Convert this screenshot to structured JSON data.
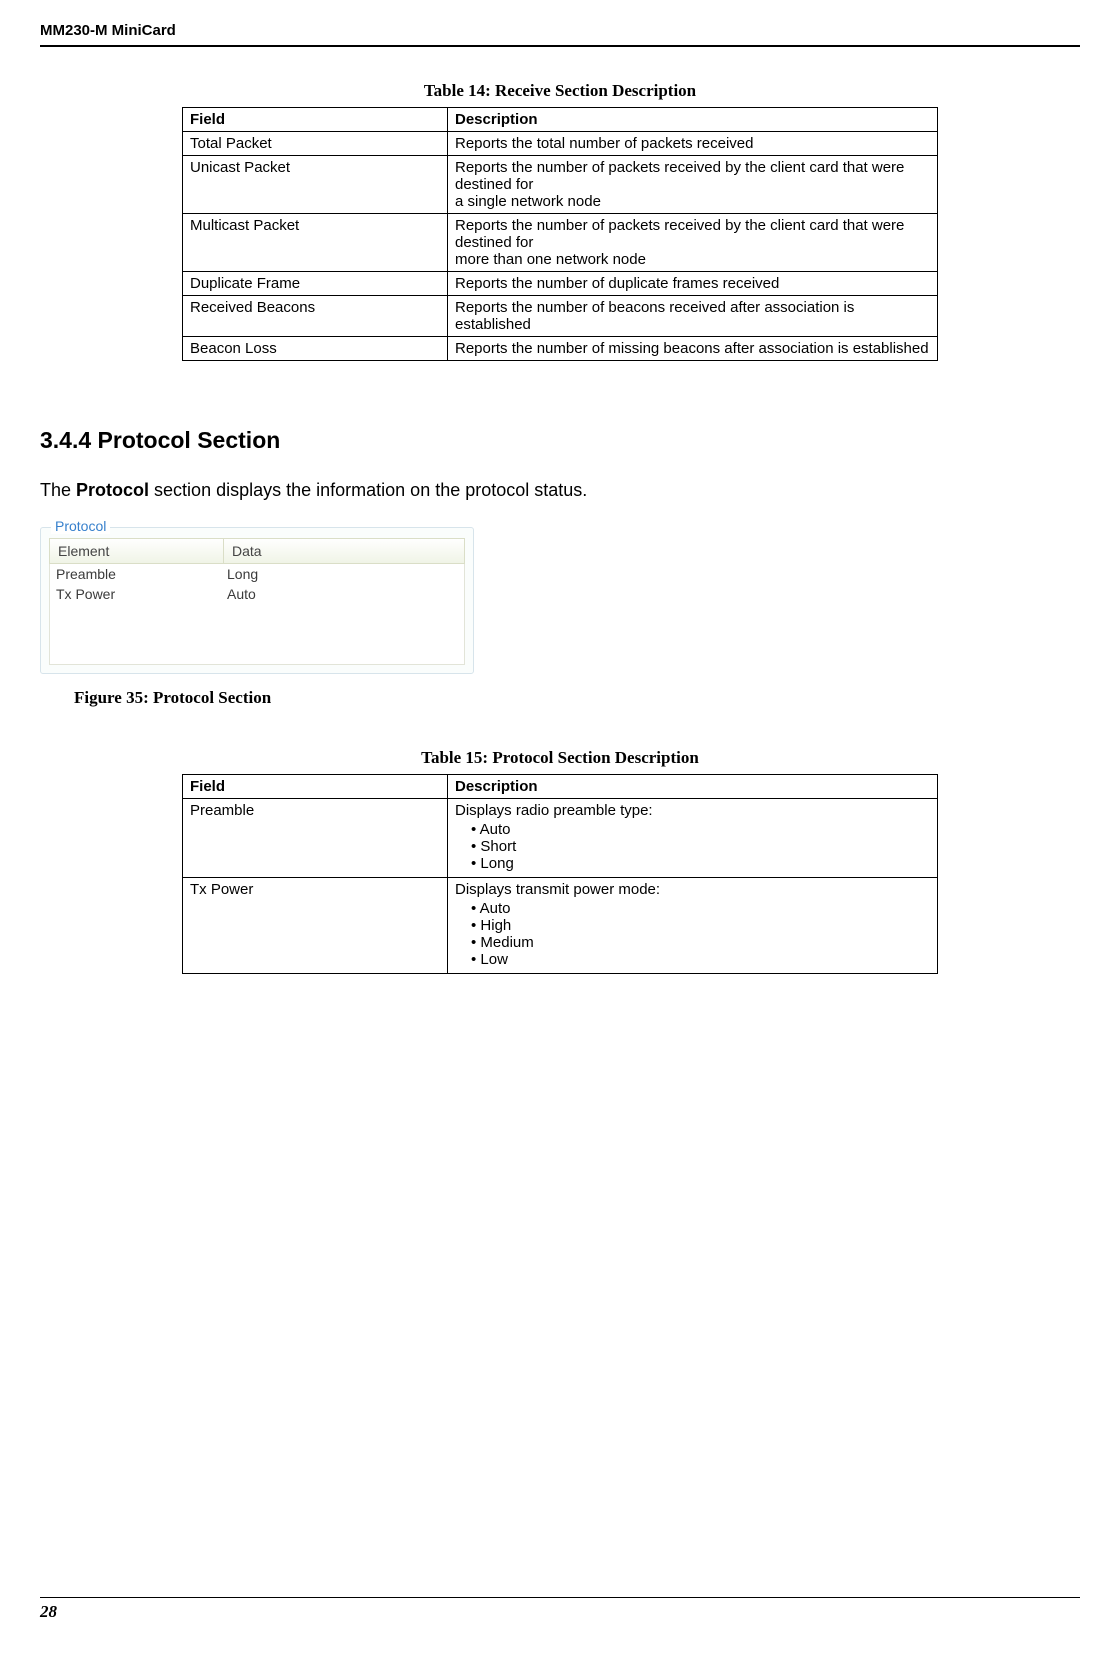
{
  "header": {
    "title": "MM230-M MiniCard"
  },
  "footer": {
    "page": "28"
  },
  "table14": {
    "caption": "Table 14: Receive Section Description",
    "columns": [
      "Field",
      "Description"
    ],
    "rows": [
      {
        "field": "Total Packet",
        "desc": "Reports the total number of packets received"
      },
      {
        "field": "Unicast Packet",
        "desc": "Reports the number of packets received by the client card that were destined for\na single network node"
      },
      {
        "field": "Multicast Packet",
        "desc": "Reports the number of packets received by the client card that were destined for\nmore than one network node"
      },
      {
        "field": "Duplicate Frame",
        "desc": "Reports the number of duplicate frames received"
      },
      {
        "field": "Received Beacons",
        "desc": "Reports the number of beacons received after association is established"
      },
      {
        "field": "Beacon Loss",
        "desc": "Reports the number of missing beacons after association is established"
      }
    ]
  },
  "section": {
    "heading": "3.4.4 Protocol Section",
    "body": "The Protocol section displays the information on the protocol status.",
    "bodyStrong": "Protocol"
  },
  "protocolPanel": {
    "legend": "Protocol",
    "headers": [
      "Element",
      "Data"
    ],
    "rows": [
      {
        "element": "Preamble",
        "data": "Long"
      },
      {
        "element": "Tx Power",
        "data": "Auto"
      }
    ]
  },
  "figure": {
    "caption": "Figure 35: Protocol Section"
  },
  "table15": {
    "caption": "Table 15: Protocol Section Description",
    "columns": [
      "Field",
      "Description"
    ],
    "rows": [
      {
        "field": "Preamble",
        "intro": "Displays radio preamble type:",
        "items": [
          "Auto",
          "Short",
          "Long"
        ]
      },
      {
        "field": "Tx Power",
        "intro": "Displays transmit power mode:",
        "items": [
          "Auto",
          "High",
          "Medium",
          "Low"
        ]
      }
    ]
  }
}
